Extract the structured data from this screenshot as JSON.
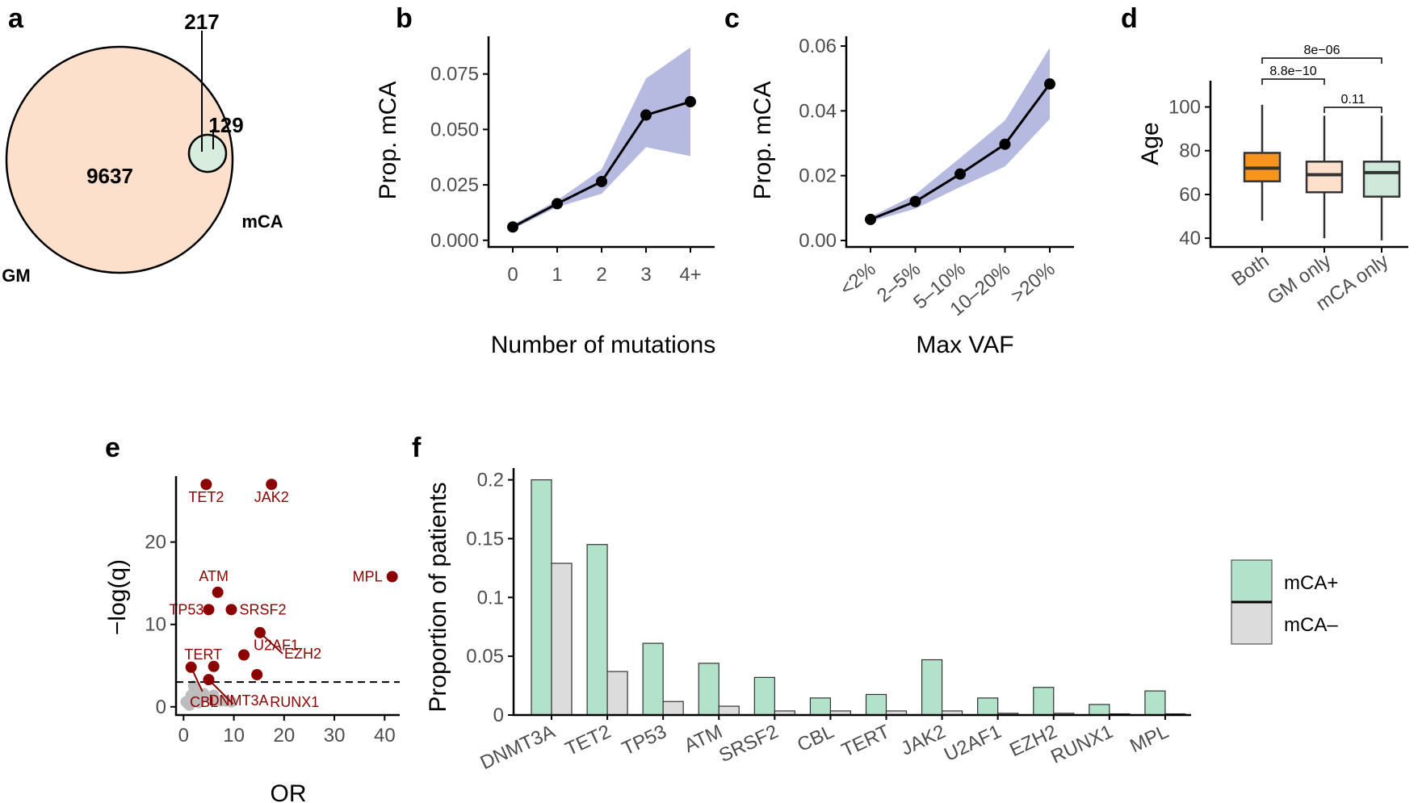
{
  "panels": {
    "a": "a",
    "b": "b",
    "c": "c",
    "d": "d",
    "e": "e",
    "f": "f"
  },
  "colors": {
    "gm": "#fde0cc",
    "mca": "#cfe8d9",
    "mca_bar": "#b3e2cb",
    "neg_bar": "#dcdcdc",
    "ribbon": "#a9aedc",
    "both": "#f7941d",
    "sig": "#8b0000",
    "nonsig": "#bdbdbd"
  },
  "chart_data": [
    {
      "id": "a",
      "type": "venn",
      "sets": [
        {
          "name": "GM",
          "only": 9637
        },
        {
          "name": "mCA",
          "only": 129
        }
      ],
      "intersection": 217
    },
    {
      "id": "b",
      "type": "line",
      "xlabel": "Number of mutations",
      "ylabel": "Prop. mCA",
      "categories": [
        "0",
        "1",
        "2",
        "3",
        "4+"
      ],
      "values": [
        0.006,
        0.0165,
        0.0265,
        0.0565,
        0.0625
      ],
      "lower": [
        0.005,
        0.015,
        0.021,
        0.042,
        0.038
      ],
      "upper": [
        0.007,
        0.018,
        0.032,
        0.073,
        0.087
      ],
      "yticks": [
        "0.000",
        "0.025",
        "0.050",
        "0.075"
      ],
      "ylim": [
        -0.003,
        0.092
      ]
    },
    {
      "id": "c",
      "type": "line",
      "xlabel": "Max VAF",
      "ylabel": "Prop. mCA",
      "categories": [
        "<2%",
        "2–5%",
        "5–10%",
        "10–20%",
        ">20%"
      ],
      "values": [
        0.0065,
        0.012,
        0.0205,
        0.0297,
        0.0483
      ],
      "lower": [
        0.0058,
        0.0098,
        0.0165,
        0.0228,
        0.0375
      ],
      "upper": [
        0.0072,
        0.0142,
        0.0255,
        0.037,
        0.0595
      ],
      "yticks": [
        "0.00",
        "0.02",
        "0.04",
        "0.06"
      ],
      "ylim": [
        -0.002,
        0.063
      ]
    },
    {
      "id": "d",
      "type": "boxplot",
      "ylabel": "Age",
      "categories": [
        "Both",
        "GM only",
        "mCA only"
      ],
      "boxes": [
        {
          "min": 48,
          "q1": 66,
          "median": 72,
          "q3": 79,
          "max": 101
        },
        {
          "min": 40,
          "q1": 61,
          "median": 69,
          "q3": 75,
          "max": 96
        },
        {
          "min": 39,
          "q1": 59,
          "median": 70,
          "q3": 75,
          "max": 96
        }
      ],
      "yticks": [
        "40",
        "60",
        "80",
        "100"
      ],
      "ylim": [
        36,
        112
      ],
      "brackets": [
        {
          "from": "Both",
          "to": "GM only",
          "label": "8.8e−10"
        },
        {
          "from": "Both",
          "to": "mCA only",
          "label": "8e−06"
        },
        {
          "from": "GM only",
          "to": "mCA only",
          "label": "0.11"
        }
      ]
    },
    {
      "id": "e",
      "type": "scatter",
      "xlabel": "OR",
      "ylabel": "−log(q)",
      "xticks": [
        "0",
        "10",
        "20",
        "30",
        "40"
      ],
      "yticks": [
        "0",
        "10",
        "20"
      ],
      "xlim": [
        -1.5,
        43
      ],
      "ylim": [
        -1,
        28
      ],
      "threshold": 3,
      "points": [
        {
          "label": "TET2",
          "x": 4.5,
          "y": 27
        },
        {
          "label": "JAK2",
          "x": 17.5,
          "y": 27
        },
        {
          "label": "MPL",
          "x": 41.5,
          "y": 15.8
        },
        {
          "label": "ATM",
          "x": 6.8,
          "y": 13.9
        },
        {
          "label": "SRSF2",
          "x": 9.5,
          "y": 11.8
        },
        {
          "label": "TP53",
          "x": 5,
          "y": 11.8
        },
        {
          "label": "EZH2",
          "x": 15.2,
          "y": 9
        },
        {
          "label": "U2AF1",
          "x": 12,
          "y": 6.3
        },
        {
          "label": "TERT",
          "x": 1.5,
          "y": 4.8
        },
        {
          "label": "DNMT3A",
          "x": 5,
          "y": 3.3
        },
        {
          "label": "RUNX1",
          "x": 14.6,
          "y": 3.9
        },
        {
          "label": "CBL",
          "x": 6,
          "y": 4.9
        }
      ],
      "nonsig": [
        [
          2,
          2.5
        ],
        [
          2.5,
          1.8
        ],
        [
          3.5,
          1.3
        ],
        [
          4.5,
          1.2
        ],
        [
          5.5,
          0.9
        ],
        [
          6.5,
          0.8
        ],
        [
          7.5,
          0.7
        ],
        [
          8.5,
          0.7
        ],
        [
          9.5,
          0.6
        ],
        [
          1.5,
          1.4
        ],
        [
          0.8,
          0.4
        ],
        [
          1.2,
          0.2
        ],
        [
          0.5,
          0.6
        ],
        [
          3,
          0.5
        ],
        [
          2.5,
          0.9
        ],
        [
          1.8,
          1
        ],
        [
          4,
          1.6
        ],
        [
          6,
          1.4
        ]
      ]
    },
    {
      "id": "f",
      "type": "bar",
      "ylabel": "Proportion of patients",
      "categories": [
        "DNMT3A",
        "TET2",
        "TP53",
        "ATM",
        "SRSF2",
        "CBL",
        "TERT",
        "JAK2",
        "U2AF1",
        "EZH2",
        "RUNX1",
        "MPL"
      ],
      "series": [
        {
          "name": "mCA+",
          "values": [
            0.2,
            0.145,
            0.061,
            0.044,
            0.032,
            0.0145,
            0.0175,
            0.047,
            0.0145,
            0.0235,
            0.009,
            0.0205
          ]
        },
        {
          "name": "mCA–",
          "values": [
            0.129,
            0.037,
            0.0115,
            0.0075,
            0.0035,
            0.0035,
            0.0035,
            0.0035,
            0.0015,
            0.0015,
            0.001,
            0.001
          ]
        }
      ],
      "yticks": [
        "0",
        "0.05",
        "0.1",
        "0.15",
        "0.2"
      ],
      "ylim": [
        0,
        0.21
      ]
    }
  ]
}
